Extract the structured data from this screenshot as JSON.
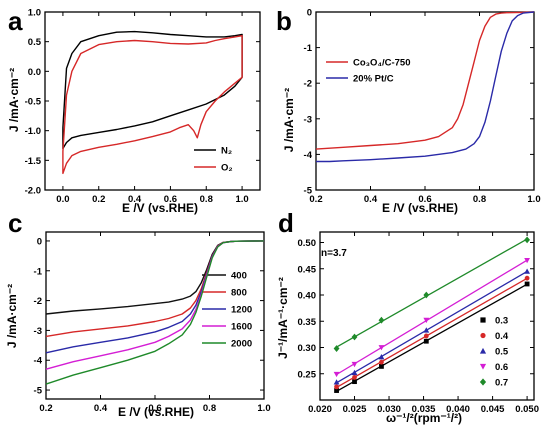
{
  "chart_data": [
    {
      "panel": "a",
      "type": "line",
      "xlabel": "E /V (vs.RHE)",
      "ylabel": "J /mA·cm⁻²",
      "xlim": [
        -0.1,
        1.1
      ],
      "ylim": [
        -2.0,
        1.0
      ],
      "xticks": [
        0.0,
        0.2,
        0.4,
        0.6,
        0.8,
        1.0
      ],
      "xtick_labels": [
        "0.0",
        "0.2",
        "0.4",
        "0.6",
        "0.8",
        "1.0"
      ],
      "yticks": [
        1.0,
        0.5,
        0.0,
        -0.5,
        -1.0,
        -1.5,
        -2.0
      ],
      "ytick_labels": [
        "1.0",
        "0.5",
        "0.0",
        "-0.5",
        "-1.0",
        "-1.5",
        "-2.0"
      ],
      "legend_position": "bottom-right",
      "series": [
        {
          "name": "N₂",
          "color": "#000000",
          "closed": true,
          "x": [
            0.0,
            0.02,
            0.05,
            0.1,
            0.2,
            0.3,
            0.4,
            0.5,
            0.6,
            0.7,
            0.8,
            0.9,
            0.96,
            1.0,
            1.0,
            0.96,
            0.9,
            0.8,
            0.7,
            0.6,
            0.5,
            0.4,
            0.3,
            0.2,
            0.1,
            0.05,
            0.02,
            0.0
          ],
          "y": [
            -0.95,
            0.05,
            0.3,
            0.5,
            0.6,
            0.66,
            0.67,
            0.65,
            0.62,
            0.6,
            0.58,
            0.58,
            0.6,
            0.62,
            -0.1,
            -0.25,
            -0.4,
            -0.55,
            -0.65,
            -0.75,
            -0.85,
            -0.92,
            -0.98,
            -1.03,
            -1.08,
            -1.12,
            -1.2,
            -1.3
          ]
        },
        {
          "name": "O₂",
          "color": "#d62828",
          "closed": true,
          "x": [
            0.0,
            0.02,
            0.05,
            0.1,
            0.2,
            0.3,
            0.4,
            0.5,
            0.6,
            0.7,
            0.8,
            0.85,
            0.9,
            0.96,
            1.0,
            1.0,
            0.96,
            0.9,
            0.85,
            0.8,
            0.77,
            0.75,
            0.73,
            0.7,
            0.65,
            0.6,
            0.5,
            0.4,
            0.3,
            0.2,
            0.1,
            0.05,
            0.02,
            0.0
          ],
          "y": [
            -1.35,
            -0.4,
            0.0,
            0.3,
            0.45,
            0.5,
            0.52,
            0.5,
            0.47,
            0.46,
            0.48,
            0.52,
            0.55,
            0.58,
            0.6,
            -0.1,
            -0.2,
            -0.35,
            -0.5,
            -0.68,
            -0.9,
            -1.12,
            -1.0,
            -0.9,
            -0.95,
            -1.02,
            -1.1,
            -1.17,
            -1.23,
            -1.28,
            -1.35,
            -1.42,
            -1.55,
            -1.72
          ]
        }
      ]
    },
    {
      "panel": "b",
      "type": "line",
      "xlabel": "E /V (vs.RHE)",
      "ylabel": "J /mA·cm⁻²",
      "xlim": [
        0.2,
        1.0
      ],
      "ylim": [
        -5,
        0
      ],
      "xticks": [
        0.2,
        0.4,
        0.6,
        0.8,
        1.0
      ],
      "xtick_labels": [
        "0.2",
        "0.4",
        "0.6",
        "0.8",
        "1.0"
      ],
      "yticks": [
        0,
        -1,
        -2,
        -3,
        -4,
        -5
      ],
      "ytick_labels": [
        "0",
        "-1",
        "-2",
        "-3",
        "-4",
        "-5"
      ],
      "legend_position": "top-left",
      "series": [
        {
          "name": "Co₃O₄/C-750",
          "color": "#d62828",
          "x": [
            0.2,
            0.3,
            0.4,
            0.5,
            0.6,
            0.65,
            0.7,
            0.72,
            0.74,
            0.76,
            0.78,
            0.8,
            0.82,
            0.84,
            0.86,
            0.88,
            0.9,
            0.95,
            1.0
          ],
          "y": [
            -3.85,
            -3.8,
            -3.75,
            -3.7,
            -3.6,
            -3.5,
            -3.25,
            -3.0,
            -2.6,
            -2.0,
            -1.4,
            -0.8,
            -0.4,
            -0.15,
            -0.06,
            -0.03,
            -0.02,
            -0.01,
            0.0
          ]
        },
        {
          "name": "20% Pt/C",
          "color": "#2a2aa8",
          "x": [
            0.2,
            0.25,
            0.3,
            0.4,
            0.5,
            0.6,
            0.7,
            0.75,
            0.78,
            0.8,
            0.82,
            0.84,
            0.86,
            0.88,
            0.9,
            0.92,
            0.94,
            0.96,
            1.0
          ],
          "y": [
            -4.2,
            -4.2,
            -4.18,
            -4.15,
            -4.1,
            -4.05,
            -3.95,
            -3.85,
            -3.7,
            -3.5,
            -3.1,
            -2.5,
            -1.8,
            -1.1,
            -0.6,
            -0.25,
            -0.1,
            -0.03,
            0.0
          ]
        }
      ]
    },
    {
      "panel": "c",
      "type": "line",
      "xlabel": "E /V (vs.RHE)",
      "ylabel": "J /mA·cm⁻²",
      "xlim": [
        0.2,
        1.0
      ],
      "ylim": [
        -5.3,
        0.3
      ],
      "xticks": [
        0.2,
        0.4,
        0.6,
        0.8,
        1.0
      ],
      "xtick_labels": [
        "0.2",
        "0.4",
        "0.6",
        "0.8",
        "1.0"
      ],
      "yticks": [
        0,
        -1,
        -2,
        -3,
        -4,
        -5
      ],
      "ytick_labels": [
        "0",
        "-1",
        "-2",
        "-3",
        "-4",
        "-5"
      ],
      "legend_position": "center-right",
      "series": [
        {
          "name": "400",
          "color": "#111111",
          "x": [
            0.2,
            0.3,
            0.4,
            0.5,
            0.6,
            0.65,
            0.7,
            0.73,
            0.75,
            0.77,
            0.79,
            0.81,
            0.83,
            0.85,
            0.88,
            0.9,
            1.0
          ],
          "y": [
            -2.45,
            -2.35,
            -2.28,
            -2.2,
            -2.1,
            -2.05,
            -1.95,
            -1.85,
            -1.7,
            -1.4,
            -0.95,
            -0.45,
            -0.15,
            -0.05,
            -0.02,
            -0.01,
            0.0
          ]
        },
        {
          "name": "800",
          "color": "#d62828",
          "x": [
            0.2,
            0.3,
            0.4,
            0.5,
            0.6,
            0.65,
            0.7,
            0.73,
            0.75,
            0.77,
            0.79,
            0.81,
            0.83,
            0.85,
            0.88,
            0.9,
            1.0
          ],
          "y": [
            -3.2,
            -3.05,
            -2.95,
            -2.85,
            -2.7,
            -2.6,
            -2.45,
            -2.25,
            -2.0,
            -1.6,
            -1.05,
            -0.5,
            -0.17,
            -0.05,
            -0.02,
            -0.01,
            0.0
          ]
        },
        {
          "name": "1200",
          "color": "#2a2aa8",
          "x": [
            0.2,
            0.3,
            0.4,
            0.5,
            0.6,
            0.65,
            0.7,
            0.73,
            0.75,
            0.77,
            0.79,
            0.81,
            0.83,
            0.85,
            0.88,
            0.9,
            1.0
          ],
          "y": [
            -3.75,
            -3.55,
            -3.4,
            -3.25,
            -3.05,
            -2.9,
            -2.7,
            -2.45,
            -2.15,
            -1.7,
            -1.1,
            -0.52,
            -0.18,
            -0.06,
            -0.02,
            -0.01,
            0.0
          ]
        },
        {
          "name": "1600",
          "color": "#d41ed4",
          "x": [
            0.2,
            0.3,
            0.4,
            0.5,
            0.6,
            0.65,
            0.7,
            0.73,
            0.75,
            0.77,
            0.79,
            0.81,
            0.83,
            0.85,
            0.88,
            0.9,
            1.0
          ],
          "y": [
            -4.3,
            -4.05,
            -3.85,
            -3.65,
            -3.4,
            -3.2,
            -2.95,
            -2.65,
            -2.3,
            -1.8,
            -1.15,
            -0.55,
            -0.19,
            -0.06,
            -0.02,
            -0.01,
            0.0
          ]
        },
        {
          "name": "2000",
          "color": "#1f8a2a",
          "x": [
            0.2,
            0.3,
            0.4,
            0.5,
            0.6,
            0.65,
            0.7,
            0.73,
            0.75,
            0.77,
            0.79,
            0.81,
            0.83,
            0.85,
            0.88,
            0.9,
            1.0
          ],
          "y": [
            -4.8,
            -4.5,
            -4.25,
            -4.0,
            -3.7,
            -3.45,
            -3.15,
            -2.8,
            -2.4,
            -1.85,
            -1.2,
            -0.57,
            -0.2,
            -0.06,
            -0.02,
            -0.01,
            0.0
          ]
        }
      ]
    },
    {
      "panel": "d",
      "type": "scatter",
      "xlabel": "ω⁻¹/²(rpm⁻¹/²)",
      "ylabel": "J⁻¹/mA⁻¹·cm⁻²",
      "xlim": [
        0.02,
        0.051
      ],
      "ylim": [
        0.2,
        0.52
      ],
      "xticks": [
        0.02,
        0.025,
        0.03,
        0.035,
        0.04,
        0.045,
        0.05
      ],
      "xtick_labels": [
        "0.020",
        "0.025",
        "0.030",
        "0.035",
        "0.040",
        "0.045",
        "0.050"
      ],
      "yticks": [
        0.25,
        0.3,
        0.35,
        0.4,
        0.45,
        0.5
      ],
      "ytick_labels": [
        "0.25",
        "0.30",
        "0.35",
        "0.40",
        "0.45",
        "0.50"
      ],
      "annotation": "n=3.7",
      "legend_position": "bottom-right",
      "x": [
        0.0224,
        0.025,
        0.0289,
        0.0354,
        0.05
      ],
      "series": [
        {
          "name": "0.3",
          "color": "#000000",
          "marker": "square",
          "values": [
            0.218,
            0.235,
            0.264,
            0.312,
            0.421
          ]
        },
        {
          "name": "0.4",
          "color": "#d62828",
          "marker": "circle",
          "values": [
            0.225,
            0.243,
            0.272,
            0.322,
            0.432
          ]
        },
        {
          "name": "0.5",
          "color": "#2a2aa8",
          "marker": "triangle-up",
          "values": [
            0.234,
            0.252,
            0.282,
            0.333,
            0.445
          ]
        },
        {
          "name": "0.6",
          "color": "#d41ed4",
          "marker": "triangle-down",
          "values": [
            0.249,
            0.268,
            0.3,
            0.352,
            0.466
          ]
        },
        {
          "name": "0.7",
          "color": "#1f8a2a",
          "marker": "diamond",
          "values": [
            0.298,
            0.32,
            0.352,
            0.4,
            0.505
          ]
        }
      ]
    }
  ]
}
